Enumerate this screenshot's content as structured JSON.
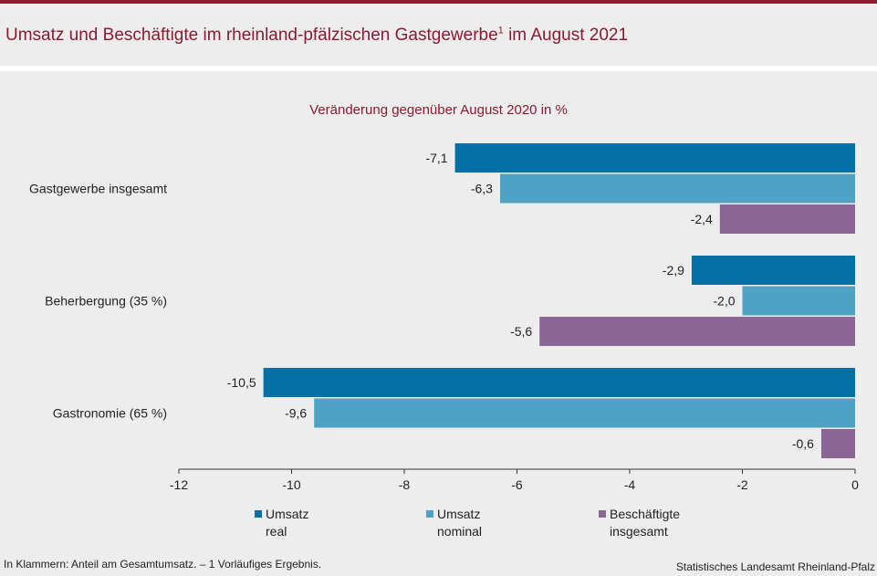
{
  "header": {
    "title": "Umsatz und Beschäftigte im rheinland-pfälzischen Gastgewerbe",
    "title_sup": "1",
    "title_suffix": " im August 2021"
  },
  "footer": {
    "note": "In Klammern: Anteil am Gesamtumsatz. – 1 Vorläufiges Ergebnis.",
    "source": "Statistisches Landesamt Rheinland-Pfalz"
  },
  "colors": {
    "accent": "#8b1a33",
    "series": [
      "#0470a5",
      "#4ea3c5",
      "#8b6593"
    ]
  },
  "chart_data": {
    "type": "bar",
    "orientation": "horizontal",
    "title": "Veränderung gegenüber August 2020 in %",
    "categories": [
      "Gastgewerbe insgesamt",
      "Beherbergung (35 %)",
      "Gastronomie (65 %)"
    ],
    "series": [
      {
        "name": "Umsatz\nreal",
        "values": [
          -7.1,
          -2.9,
          -10.5
        ],
        "labels": [
          "-7,1",
          "-2,9",
          "-10,5"
        ]
      },
      {
        "name": "Umsatz\nnominal",
        "values": [
          -6.3,
          -2.0,
          -9.6
        ],
        "labels": [
          "-6,3",
          "-2,0",
          "-9,6"
        ]
      },
      {
        "name": "Beschäftigte\ninsgesamt",
        "values": [
          -2.4,
          -5.6,
          -0.6
        ],
        "labels": [
          "-2,4",
          "-5,6",
          "-0,6"
        ]
      }
    ],
    "xlim": [
      -12,
      0
    ],
    "xticks": [
      -12,
      -10,
      -8,
      -6,
      -4,
      -2,
      0
    ],
    "grid": false,
    "legend_position": "bottom"
  }
}
